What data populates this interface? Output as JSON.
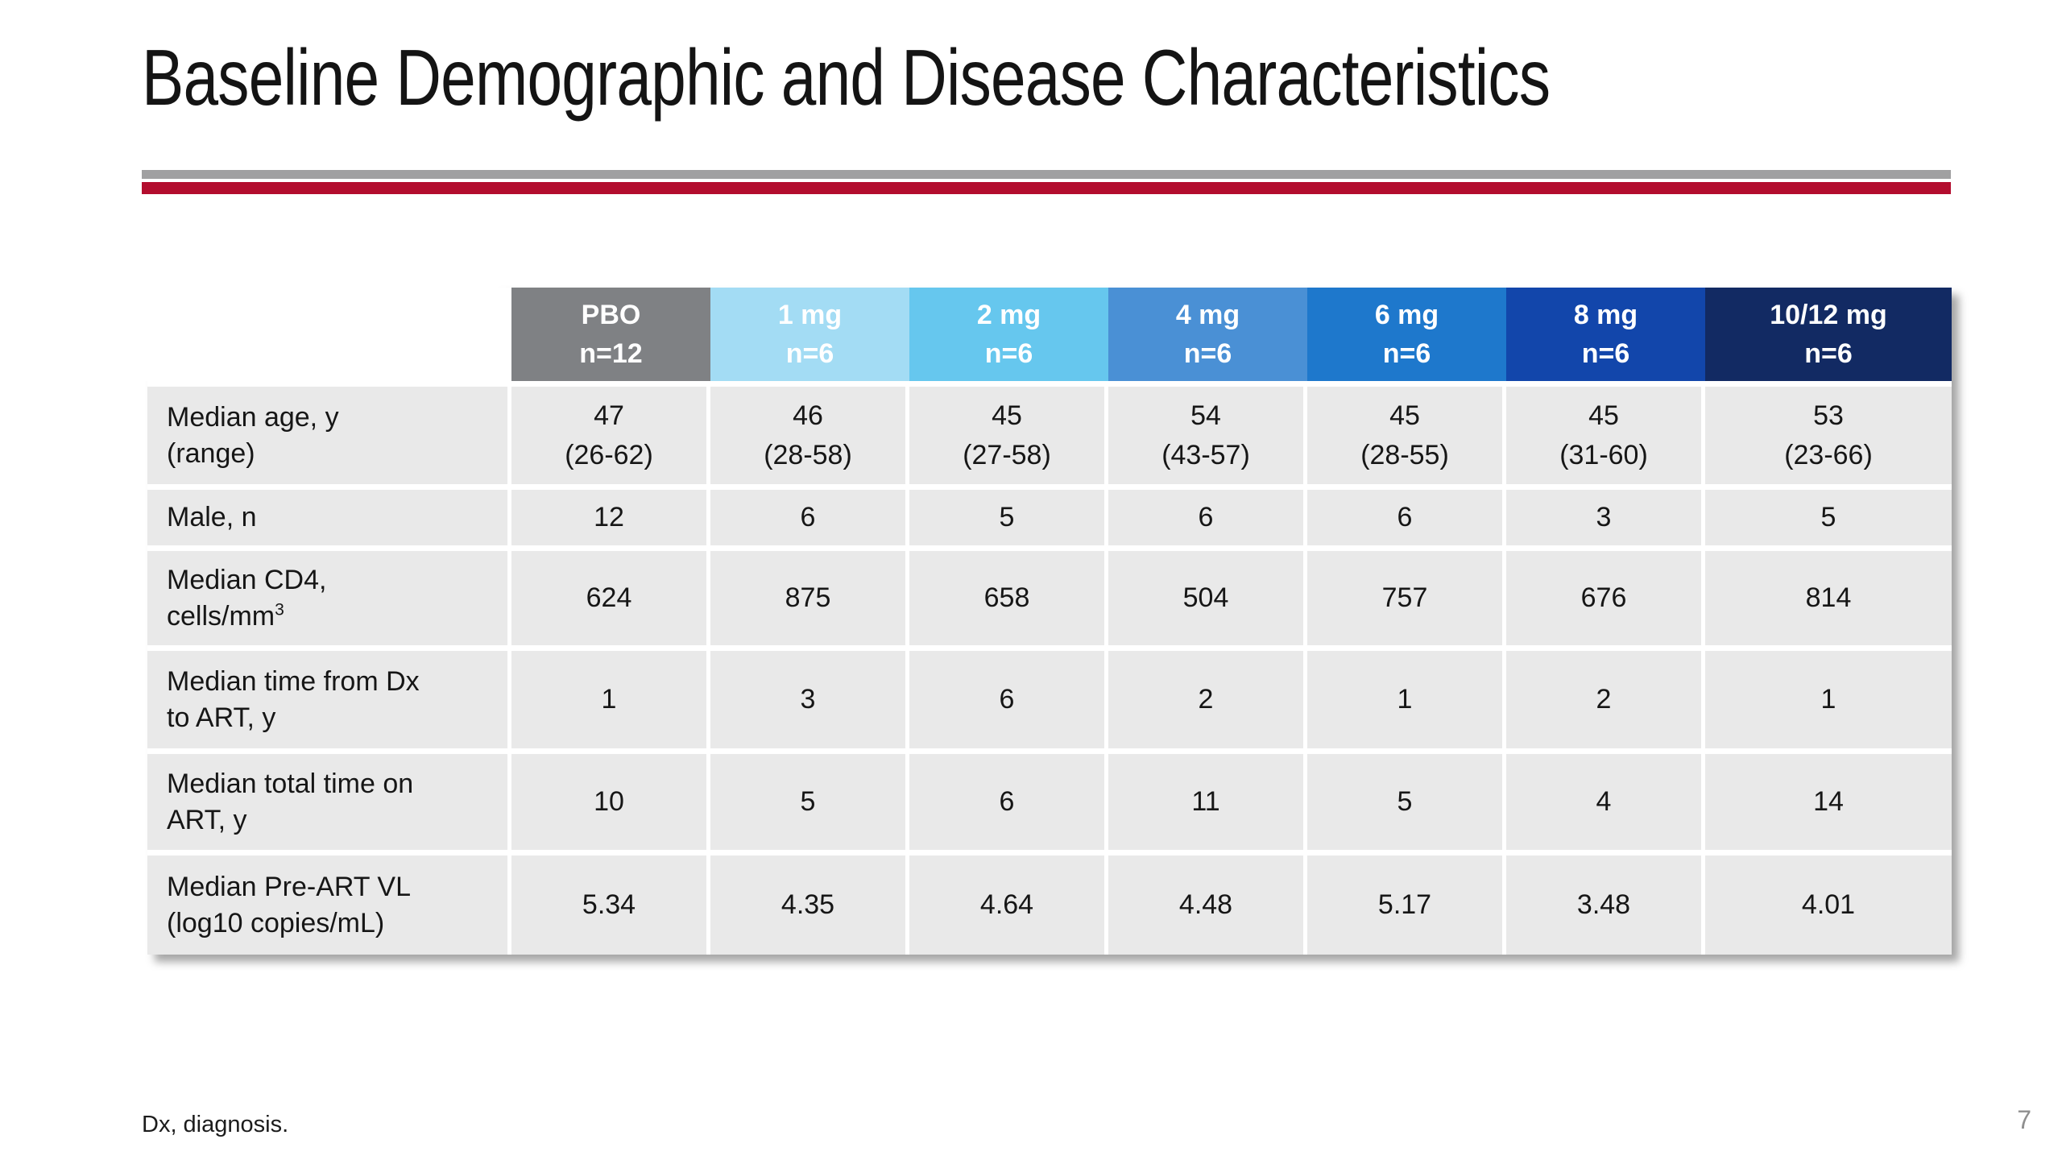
{
  "slide": {
    "title": "Baseline Demographic and Disease Characteristics",
    "footnote": "Dx, diagnosis.",
    "page_number": "7"
  },
  "colors": {
    "divider_gray": "#a0a0a1",
    "divider_red": "#b30d2e",
    "cell_bg": "#e9e9e9",
    "header_text": "#ffffff",
    "body_text": "#161616"
  },
  "table": {
    "columns": [
      {
        "label": "PBO",
        "n": "n=12",
        "color": "#7f8184"
      },
      {
        "label": "1 mg",
        "n": "n=6",
        "color": "#a3dcf4"
      },
      {
        "label": "2 mg",
        "n": "n=6",
        "color": "#66c7ee"
      },
      {
        "label": "4 mg",
        "n": "n=6",
        "color": "#4a90d5"
      },
      {
        "label": "6 mg",
        "n": "n=6",
        "color": "#1e78cc"
      },
      {
        "label": "8 mg",
        "n": "n=6",
        "color": "#1246ab"
      },
      {
        "label": "10/12 mg",
        "n": "n=6",
        "color": "#122a63"
      }
    ],
    "rows": [
      {
        "label_lines": [
          "Median age, y",
          "(range)"
        ],
        "label_sup": "",
        "values": [
          [
            "47",
            "(26-62)"
          ],
          [
            "46",
            "(28-58)"
          ],
          [
            "45",
            "(27-58)"
          ],
          [
            "54",
            "(43-57)"
          ],
          [
            "45",
            "(28-55)"
          ],
          [
            "45",
            "(31-60)"
          ],
          [
            "53",
            "(23-66)"
          ]
        ]
      },
      {
        "label_lines": [
          "Male, n"
        ],
        "label_sup": "",
        "values": [
          [
            "12"
          ],
          [
            "6"
          ],
          [
            "5"
          ],
          [
            "6"
          ],
          [
            "6"
          ],
          [
            "3"
          ],
          [
            "5"
          ]
        ]
      },
      {
        "label_lines": [
          "Median CD4,",
          "cells/mm"
        ],
        "label_sup": "3",
        "values": [
          [
            "624"
          ],
          [
            "875"
          ],
          [
            "658"
          ],
          [
            "504"
          ],
          [
            "757"
          ],
          [
            "676"
          ],
          [
            "814"
          ]
        ]
      },
      {
        "label_lines": [
          "Median time from Dx",
          "to ART, y"
        ],
        "label_sup": "",
        "values": [
          [
            "1"
          ],
          [
            "3"
          ],
          [
            "6"
          ],
          [
            "2"
          ],
          [
            "1"
          ],
          [
            "2"
          ],
          [
            "1"
          ]
        ]
      },
      {
        "label_lines": [
          "Median total time on",
          "ART, y"
        ],
        "label_sup": "",
        "values": [
          [
            "10"
          ],
          [
            "5"
          ],
          [
            "6"
          ],
          [
            "11"
          ],
          [
            "5"
          ],
          [
            "4"
          ],
          [
            "14"
          ]
        ]
      },
      {
        "label_lines": [
          "Median Pre-ART VL",
          "(log10 copies/mL)"
        ],
        "label_sup": "",
        "values": [
          [
            "5.34"
          ],
          [
            "4.35"
          ],
          [
            "4.64"
          ],
          [
            "4.48"
          ],
          [
            "5.17"
          ],
          [
            "3.48"
          ],
          [
            "4.01"
          ]
        ]
      }
    ]
  }
}
